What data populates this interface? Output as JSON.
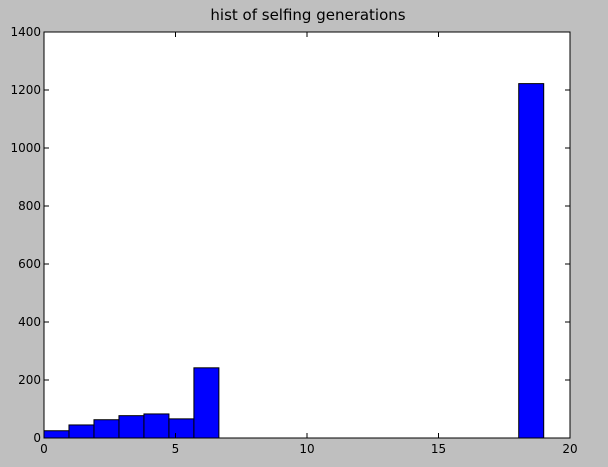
{
  "chart_data": {
    "type": "bar",
    "title": "hist of selfing generations",
    "xlabel": "",
    "ylabel": "",
    "xlim": [
      0,
      20
    ],
    "ylim": [
      0,
      1400
    ],
    "xticks": [
      0,
      5,
      10,
      15,
      20
    ],
    "yticks": [
      0,
      200,
      400,
      600,
      800,
      1000,
      1200,
      1400
    ],
    "bins": [
      {
        "x0": 0.0,
        "x1": 0.95,
        "value": 25
      },
      {
        "x0": 0.95,
        "x1": 1.9,
        "value": 45
      },
      {
        "x0": 1.9,
        "x1": 2.85,
        "value": 63
      },
      {
        "x0": 2.85,
        "x1": 3.8,
        "value": 77
      },
      {
        "x0": 3.8,
        "x1": 4.75,
        "value": 83
      },
      {
        "x0": 4.75,
        "x1": 5.7,
        "value": 66
      },
      {
        "x0": 5.7,
        "x1": 6.65,
        "value": 242
      },
      {
        "x0": 18.05,
        "x1": 19.0,
        "value": 1222
      }
    ],
    "bar_color": "#0000ff",
    "grid": false,
    "legend": "none"
  }
}
